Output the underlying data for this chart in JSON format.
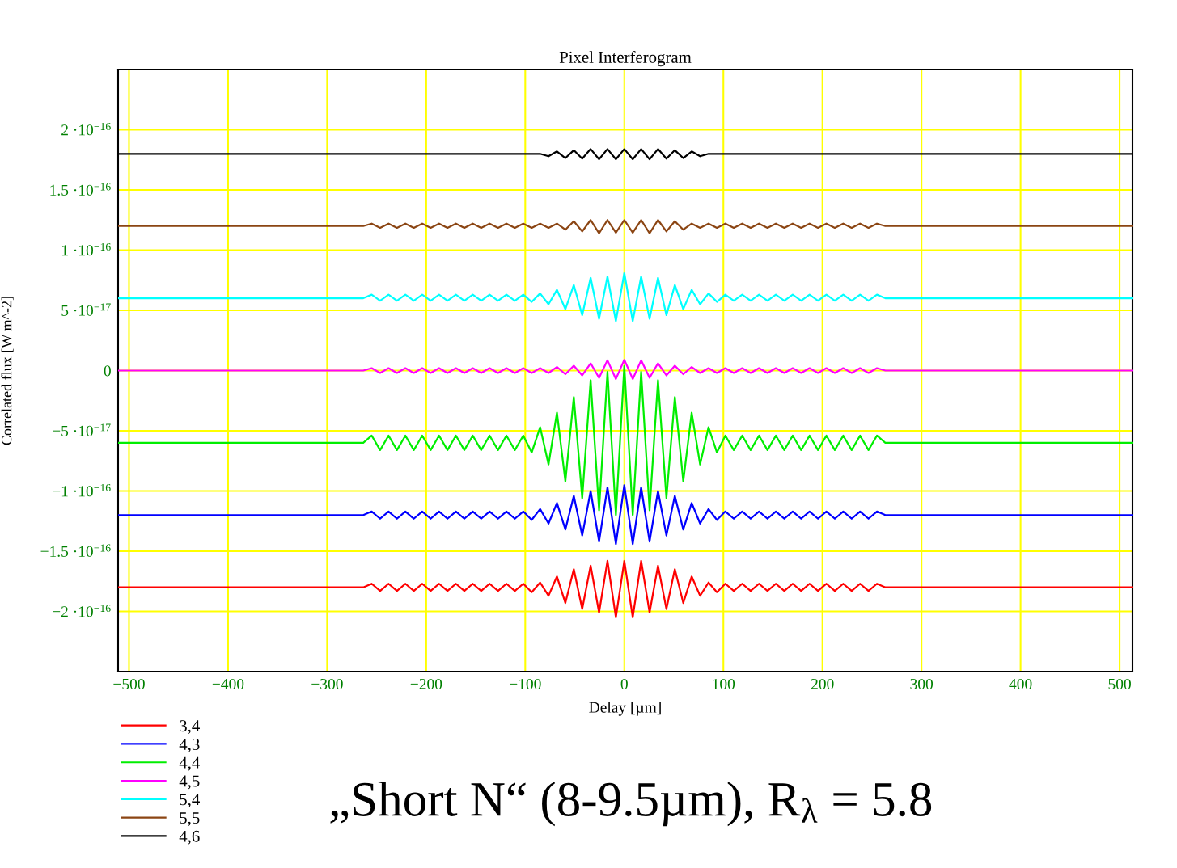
{
  "chart_data": {
    "type": "line",
    "title": "Pixel Interferogram",
    "xlabel": "Delay [µm]",
    "ylabel": "Correlated flux [W m^-2]",
    "x": [
      -511,
      -263.5,
      -255,
      -246.5,
      -238,
      -229.5,
      -221,
      -212.5,
      -204,
      -195.5,
      -187,
      -178.5,
      -170,
      -161.5,
      -153,
      -144.5,
      -136,
      -127.5,
      -119,
      -110.5,
      -102,
      -93.5,
      -85,
      -76.5,
      -68,
      -59.5,
      -51,
      -42.5,
      -34,
      -25.5,
      -17,
      -8.5,
      0,
      8.5,
      17,
      25.5,
      34,
      42.5,
      51,
      59.5,
      68,
      76.5,
      85,
      93.5,
      102,
      110.5,
      119,
      127.5,
      136,
      144.5,
      153,
      161.5,
      170,
      178.5,
      187,
      195.5,
      204,
      212.5,
      221,
      229.5,
      238,
      246.5,
      255,
      263.5,
      513
    ],
    "series": [
      {
        "name": "3,4",
        "color": "#ff0000",
        "values": [
          -1.8e-16,
          -1.8e-16,
          -1.77e-16,
          -1.83e-16,
          -1.77e-16,
          -1.83e-16,
          -1.77e-16,
          -1.83e-16,
          -1.77e-16,
          -1.83e-16,
          -1.77e-16,
          -1.83e-16,
          -1.77e-16,
          -1.83e-16,
          -1.77e-16,
          -1.83e-16,
          -1.77e-16,
          -1.83e-16,
          -1.77e-16,
          -1.83e-16,
          -1.77e-16,
          -1.84e-16,
          -1.76e-16,
          -1.87e-16,
          -1.71e-16,
          -1.93e-16,
          -1.65e-16,
          -1.98e-16,
          -1.62e-16,
          -2.01e-16,
          -1.58e-16,
          -2.05e-16,
          -1.58e-16,
          -2.05e-16,
          -1.58e-16,
          -2.01e-16,
          -1.62e-16,
          -1.98e-16,
          -1.65e-16,
          -1.93e-16,
          -1.71e-16,
          -1.87e-16,
          -1.76e-16,
          -1.84e-16,
          -1.77e-16,
          -1.83e-16,
          -1.77e-16,
          -1.83e-16,
          -1.77e-16,
          -1.83e-16,
          -1.77e-16,
          -1.83e-16,
          -1.77e-16,
          -1.83e-16,
          -1.77e-16,
          -1.83e-16,
          -1.77e-16,
          -1.83e-16,
          -1.77e-16,
          -1.83e-16,
          -1.77e-16,
          -1.83e-16,
          -1.77e-16,
          -1.8e-16,
          -1.8e-16
        ]
      },
      {
        "name": "4,3",
        "color": "#0000ff",
        "values": [
          -1.2e-16,
          -1.2e-16,
          -1.17e-16,
          -1.23e-16,
          -1.17e-16,
          -1.23e-16,
          -1.17e-16,
          -1.23e-16,
          -1.17e-16,
          -1.23e-16,
          -1.17e-16,
          -1.23e-16,
          -1.17e-16,
          -1.23e-16,
          -1.17e-16,
          -1.23e-16,
          -1.17e-16,
          -1.23e-16,
          -1.17e-16,
          -1.23e-16,
          -1.17e-16,
          -1.24e-16,
          -1.15e-16,
          -1.27e-16,
          -1.1e-16,
          -1.32e-16,
          -1.04e-16,
          -1.37e-16,
          -1e-16,
          -1.42e-16,
          -9.7e-17,
          -1.44e-16,
          -9.5e-17,
          -1.44e-16,
          -9.7e-17,
          -1.42e-16,
          -1e-16,
          -1.37e-16,
          -1.04e-16,
          -1.32e-16,
          -1.1e-16,
          -1.27e-16,
          -1.15e-16,
          -1.24e-16,
          -1.17e-16,
          -1.23e-16,
          -1.17e-16,
          -1.23e-16,
          -1.17e-16,
          -1.23e-16,
          -1.17e-16,
          -1.23e-16,
          -1.17e-16,
          -1.23e-16,
          -1.17e-16,
          -1.23e-16,
          -1.17e-16,
          -1.23e-16,
          -1.17e-16,
          -1.23e-16,
          -1.17e-16,
          -1.23e-16,
          -1.17e-16,
          -1.2e-16,
          -1.2e-16
        ]
      },
      {
        "name": "4,4",
        "color": "#00ee00",
        "values": [
          -6e-17,
          -6e-17,
          -5.4e-17,
          -6.6e-17,
          -5.4e-17,
          -6.6e-17,
          -5.4e-17,
          -6.6e-17,
          -5.4e-17,
          -6.6e-17,
          -5.4e-17,
          -6.6e-17,
          -5.4e-17,
          -6.6e-17,
          -5.4e-17,
          -6.6e-17,
          -5.4e-17,
          -6.6e-17,
          -5.4e-17,
          -6.6e-17,
          -5.4e-17,
          -6.8e-17,
          -4.7e-17,
          -7.8e-17,
          -3.5e-17,
          -9.2e-17,
          -2.2e-17,
          -1.06e-16,
          -8e-18,
          -1.16e-16,
          -1e-18,
          -1.2e-16,
          4e-18,
          -1.2e-16,
          -1e-18,
          -1.16e-16,
          -8e-18,
          -1.06e-16,
          -2.2e-17,
          -9.2e-17,
          -3.5e-17,
          -7.8e-17,
          -4.7e-17,
          -6.8e-17,
          -5.4e-17,
          -6.6e-17,
          -5.4e-17,
          -6.6e-17,
          -5.4e-17,
          -6.6e-17,
          -5.4e-17,
          -6.6e-17,
          -5.4e-17,
          -6.6e-17,
          -5.4e-17,
          -6.6e-17,
          -5.4e-17,
          -6.6e-17,
          -5.4e-17,
          -6.6e-17,
          -5.4e-17,
          -6.6e-17,
          -5.4e-17,
          -6e-17,
          -6e-17
        ]
      },
      {
        "name": "4,5",
        "color": "#ff00ff",
        "values": [
          0,
          0,
          2e-18,
          -2e-18,
          2e-18,
          -2e-18,
          2e-18,
          -2e-18,
          2e-18,
          -2e-18,
          2e-18,
          -2e-18,
          2e-18,
          -2e-18,
          2e-18,
          -2e-18,
          2e-18,
          -2e-18,
          2e-18,
          -2e-18,
          2e-18,
          -2e-18,
          2e-18,
          -2e-18,
          3e-18,
          -3e-18,
          4e-18,
          -4e-18,
          6e-18,
          -6e-18,
          8.5e-18,
          -7e-18,
          9e-18,
          -7e-18,
          8.5e-18,
          -6e-18,
          6e-18,
          -4e-18,
          4e-18,
          -3e-18,
          3e-18,
          -2e-18,
          2e-18,
          -2e-18,
          2e-18,
          -2e-18,
          2e-18,
          -2e-18,
          2e-18,
          -2e-18,
          2e-18,
          -2e-18,
          2e-18,
          -2e-18,
          2e-18,
          -2e-18,
          2e-18,
          -2e-18,
          2e-18,
          -2e-18,
          2e-18,
          -2e-18,
          2e-18,
          0,
          0
        ]
      },
      {
        "name": "5,4",
        "color": "#00ffff",
        "values": [
          6e-17,
          6e-17,
          6.3e-17,
          5.8e-17,
          6.3e-17,
          5.8e-17,
          6.3e-17,
          5.8e-17,
          6.3e-17,
          5.8e-17,
          6.3e-17,
          5.8e-17,
          6.3e-17,
          5.8e-17,
          6.3e-17,
          5.8e-17,
          6.3e-17,
          5.8e-17,
          6.3e-17,
          5.8e-17,
          6.3e-17,
          5.7e-17,
          6.4e-17,
          5.5e-17,
          6.7e-17,
          5.1e-17,
          7.1e-17,
          4.6e-17,
          7.7e-17,
          4.3e-17,
          7.8e-17,
          4.1e-17,
          8.1e-17,
          4.1e-17,
          7.8e-17,
          4.3e-17,
          7.7e-17,
          4.6e-17,
          7.1e-17,
          5.1e-17,
          6.7e-17,
          5.5e-17,
          6.4e-17,
          5.7e-17,
          6.3e-17,
          5.8e-17,
          6.3e-17,
          5.8e-17,
          6.3e-17,
          5.8e-17,
          6.3e-17,
          5.8e-17,
          6.3e-17,
          5.8e-17,
          6.3e-17,
          5.8e-17,
          6.3e-17,
          5.8e-17,
          6.3e-17,
          5.8e-17,
          6.3e-17,
          5.8e-17,
          6.3e-17,
          6e-17,
          6e-17
        ]
      },
      {
        "name": "5,5",
        "color": "#8b4513",
        "values": [
          1.2e-16,
          1.2e-16,
          1.22e-16,
          1.185e-16,
          1.22e-16,
          1.185e-16,
          1.22e-16,
          1.185e-16,
          1.22e-16,
          1.185e-16,
          1.22e-16,
          1.185e-16,
          1.22e-16,
          1.185e-16,
          1.22e-16,
          1.185e-16,
          1.22e-16,
          1.185e-16,
          1.22e-16,
          1.185e-16,
          1.22e-16,
          1.185e-16,
          1.22e-16,
          1.185e-16,
          1.22e-16,
          1.17e-16,
          1.24e-16,
          1.155e-16,
          1.25e-16,
          1.14e-16,
          1.25e-16,
          1.145e-16,
          1.25e-16,
          1.145e-16,
          1.25e-16,
          1.14e-16,
          1.25e-16,
          1.155e-16,
          1.24e-16,
          1.17e-16,
          1.22e-16,
          1.185e-16,
          1.22e-16,
          1.185e-16,
          1.22e-16,
          1.185e-16,
          1.22e-16,
          1.185e-16,
          1.22e-16,
          1.185e-16,
          1.22e-16,
          1.185e-16,
          1.22e-16,
          1.185e-16,
          1.22e-16,
          1.185e-16,
          1.22e-16,
          1.185e-16,
          1.22e-16,
          1.185e-16,
          1.22e-16,
          1.185e-16,
          1.22e-16,
          1.2e-16,
          1.2e-16
        ]
      },
      {
        "name": "4,6",
        "color": "#000000",
        "values": [
          1.8e-16,
          1.8e-16,
          1.8e-16,
          1.8e-16,
          1.8e-16,
          1.8e-16,
          1.8e-16,
          1.8e-16,
          1.8e-16,
          1.8e-16,
          1.8e-16,
          1.8e-16,
          1.8e-16,
          1.8e-16,
          1.8e-16,
          1.8e-16,
          1.8e-16,
          1.8e-16,
          1.8e-16,
          1.8e-16,
          1.8e-16,
          1.8e-16,
          1.8e-16,
          1.78e-16,
          1.82e-16,
          1.765e-16,
          1.83e-16,
          1.76e-16,
          1.84e-16,
          1.755e-16,
          1.84e-16,
          1.755e-16,
          1.84e-16,
          1.755e-16,
          1.84e-16,
          1.755e-16,
          1.84e-16,
          1.76e-16,
          1.83e-16,
          1.765e-16,
          1.82e-16,
          1.78e-16,
          1.8e-16,
          1.8e-16,
          1.8e-16,
          1.8e-16,
          1.8e-16,
          1.8e-16,
          1.8e-16,
          1.8e-16,
          1.8e-16,
          1.8e-16,
          1.8e-16,
          1.8e-16,
          1.8e-16,
          1.8e-16,
          1.8e-16,
          1.8e-16,
          1.8e-16,
          1.8e-16,
          1.8e-16,
          1.8e-16,
          1.8e-16,
          1.8e-16,
          1.8e-16
        ]
      }
    ],
    "xlim": [
      -511,
      513
    ],
    "ylim": [
      -2.5e-16,
      2.5e-16
    ],
    "xticks": [
      {
        "value": -500,
        "label": "−500"
      },
      {
        "value": -400,
        "label": "−400"
      },
      {
        "value": -300,
        "label": "−300"
      },
      {
        "value": -200,
        "label": "−200"
      },
      {
        "value": -100,
        "label": "−100"
      },
      0,
      100,
      200,
      300,
      400,
      500
    ],
    "yticks": [
      {
        "value": -2e-16,
        "label": "−2 ·10$^{−16}$"
      },
      {
        "value": -1.5e-16,
        "label": "−1.5 ·10$^{−16}$"
      },
      {
        "value": -1e-16,
        "label": "−1 ·10$^{−16}$"
      },
      {
        "value": -5e-17,
        "label": "−5 ·10$^{−17}$"
      },
      0,
      {
        "value": 5e-17,
        "label": "5 ·10$^{−17}$"
      },
      {
        "value": 1e-16,
        "label": "1 ·10$^{−16}$"
      },
      {
        "value": 1.5e-16,
        "label": "1.5 ·10$^{−16}$"
      },
      {
        "value": 2e-16,
        "label": "2 ·10$^{−16}$"
      }
    ],
    "grid": true,
    "legend": "bottom left",
    "marker": "none",
    "line_style": "solid",
    "annotations": [
      "„Short N“ (8-9.5µm), R$_{λ}$ = 5.8"
    ]
  }
}
